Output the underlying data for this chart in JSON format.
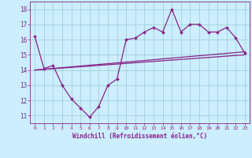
{
  "x_data": [
    0,
    1,
    2,
    3,
    4,
    5,
    6,
    7,
    8,
    9,
    10,
    11,
    12,
    13,
    14,
    15,
    16,
    17,
    18,
    19,
    20,
    21,
    22,
    23
  ],
  "y_line1": [
    16.2,
    14.1,
    14.3,
    13.0,
    12.1,
    11.5,
    10.9,
    11.6,
    13.0,
    13.4,
    16.0,
    16.1,
    16.5,
    16.8,
    16.5,
    18.0,
    16.5,
    17.0,
    17.0,
    16.5,
    16.5,
    16.8,
    16.1,
    15.1
  ],
  "y_line2_start": 14.0,
  "y_line2_end": 15.2,
  "y_line3_start": 14.0,
  "y_line3_end": 15.0,
  "color": "#882288",
  "bg_color": "#cceeff",
  "grid_color": "#99cccc",
  "xlabel": "Windchill (Refroidissement éolien,°C)",
  "ylim": [
    10.5,
    18.5
  ],
  "xlim": [
    -0.5,
    23.5
  ],
  "yticks": [
    11,
    12,
    13,
    14,
    15,
    16,
    17,
    18
  ],
  "xticks": [
    0,
    1,
    2,
    3,
    4,
    5,
    6,
    7,
    8,
    9,
    10,
    11,
    12,
    13,
    14,
    15,
    16,
    17,
    18,
    19,
    20,
    21,
    22,
    23
  ]
}
